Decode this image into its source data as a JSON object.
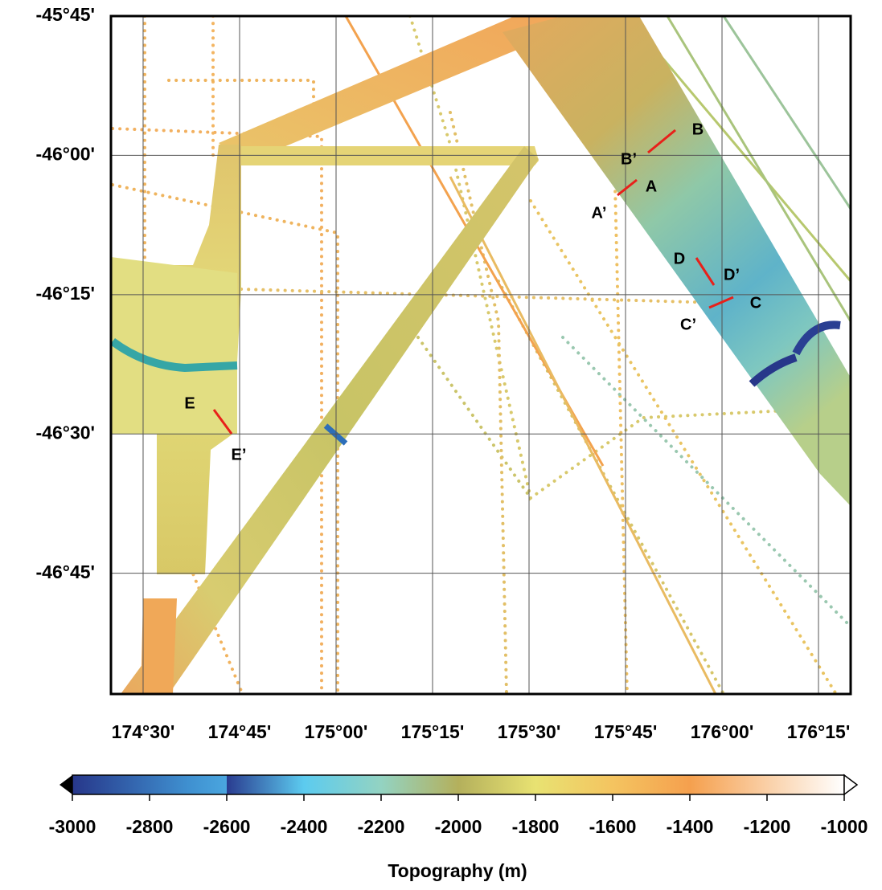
{
  "map": {
    "lonlim": [
      174.4167,
      176.3333
    ],
    "latlim": [
      -46.9667,
      -45.75
    ],
    "lon_ticks": [
      {
        "value": 174.5,
        "label": "174°30'"
      },
      {
        "value": 174.75,
        "label": "174°45'"
      },
      {
        "value": 175.0,
        "label": "175°00'"
      },
      {
        "value": 175.25,
        "label": "175°15'"
      },
      {
        "value": 175.5,
        "label": "175°30'"
      },
      {
        "value": 175.75,
        "label": "175°45'"
      },
      {
        "value": 176.0,
        "label": "176°00'"
      },
      {
        "value": 176.25,
        "label": "176°15'"
      }
    ],
    "lat_ticks": [
      {
        "value": -45.75,
        "label": "-45°45'"
      },
      {
        "value": -46.0,
        "label": "-46°00'"
      },
      {
        "value": -46.25,
        "label": "-46°15'"
      },
      {
        "value": -46.5,
        "label": "-46°30'"
      },
      {
        "value": -46.75,
        "label": "-46°45'"
      }
    ],
    "profile_labels": [
      "A",
      "A’",
      "B",
      "B’",
      "C",
      "C’",
      "D",
      "D’",
      "E",
      "E’"
    ]
  },
  "colorbar": {
    "lim": [
      -3000,
      -1000
    ],
    "ticks": [
      -3000,
      -2800,
      -2600,
      -2400,
      -2200,
      -2000,
      -1800,
      -1600,
      -1400,
      -1200,
      -1000
    ],
    "label": "Topography (m)"
  }
}
